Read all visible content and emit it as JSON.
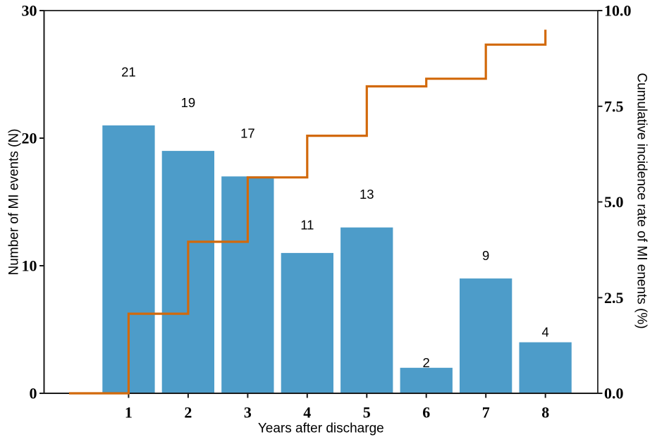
{
  "figure": {
    "kind": "static-statistical-figure",
    "background": "#ffffff"
  },
  "style": {
    "bar_color": "#4d9cc9",
    "step_line_color": "#d2690b",
    "axis_color": "#1a1a1a",
    "text_color": "#000000"
  },
  "chart_data": {
    "type": "bar",
    "combo": "bar + cumulative step line",
    "title": "",
    "xlabel": "Years after discharge",
    "ylabel_left": "Number of MI events (N)",
    "ylabel_right": "Cumulative incidence rate of MI enents (%)",
    "categories": [
      1,
      2,
      3,
      4,
      5,
      6,
      7,
      8
    ],
    "series": [
      {
        "name": "Number of MI events (N)",
        "type": "bar",
        "yaxis": "left",
        "color": "#4d9cc9",
        "values": [
          21,
          19,
          17,
          11,
          13,
          2,
          9,
          4
        ],
        "bar_labels": [
          "21",
          "19",
          "17",
          "11",
          "13",
          "2",
          "9",
          "4"
        ]
      },
      {
        "name": "Cumulative incidence rate of MI enents (%)",
        "type": "step",
        "yaxis": "right",
        "color": "#d2690b",
        "start_x": 0,
        "start_value": 0,
        "step_x": [
          1,
          2,
          3,
          4,
          5,
          6,
          7,
          8
        ],
        "values": [
          2.08,
          3.96,
          5.64,
          6.73,
          8.02,
          8.22,
          9.11,
          9.5
        ]
      }
    ],
    "axes": {
      "xlim": [
        -0.42,
        8.88
      ],
      "ylim_left": [
        0,
        30
      ],
      "ylim_right": [
        0,
        10
      ],
      "xticks": [
        "1",
        "2",
        "3",
        "4",
        "5",
        "6",
        "7",
        "8"
      ],
      "xtick_positions": [
        1,
        2,
        3,
        4,
        5,
        6,
        7,
        8
      ],
      "yticks_left": [
        "0",
        "10",
        "20",
        "30"
      ],
      "ytick_left_positions": [
        0,
        10,
        20,
        30
      ],
      "yticks_right": [
        "0.0",
        "2.5",
        "5.0",
        "7.5",
        "10.0"
      ],
      "ytick_right_positions": [
        0,
        2.5,
        5,
        7.5,
        10
      ],
      "grid": false,
      "box": true,
      "legend": null
    },
    "bar_width_fraction": 0.88,
    "bar_label_y_factor": 1.2
  }
}
